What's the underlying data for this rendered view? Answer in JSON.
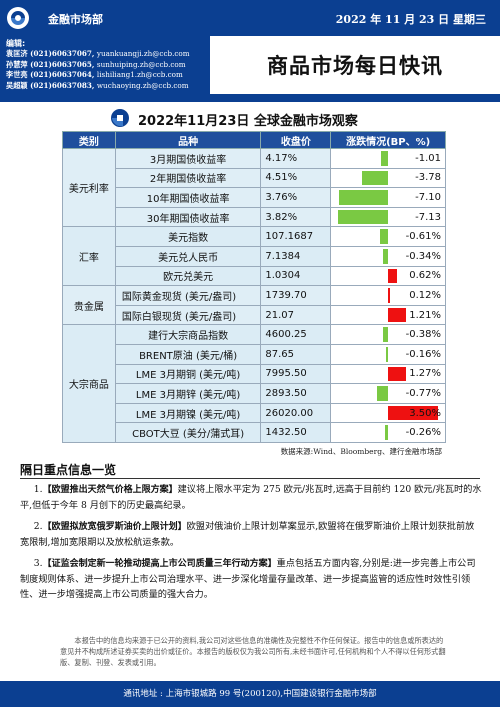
{
  "header": {
    "dept": "金融市场部",
    "date": "2022 年 11 月 23 日  星期三",
    "title": "商品市场每日快讯"
  },
  "editors": {
    "label": "编辑:",
    "people": [
      {
        "name": "袁匡济",
        "phone": "(021)60637067,",
        "email": "yuankuangji.zh@ccb.com"
      },
      {
        "name": "孙慧萍",
        "phone": "(021)60637065,",
        "email": "sunhuiping.zh@ccb.com"
      },
      {
        "name": "李世亮",
        "phone": "(021)60637064,",
        "email": "lishiliang1.zh@ccb.com"
      },
      {
        "name": "吴超颖",
        "phone": "(021)60637083,",
        "email": "wuchaoying.zh@ccb.com"
      }
    ]
  },
  "subtitle": "2022年11月23日 全球金融市场观察",
  "table": {
    "headers": [
      "类别",
      "品种",
      "收盘价",
      "涨跌情况(BP、%)"
    ],
    "groups": [
      {
        "category": "美元利率",
        "shade": "a",
        "rows": [
          {
            "name": "3月期国债收益率",
            "price": "4.17%",
            "change": "-1.01",
            "pct": -1.01
          },
          {
            "name": "2年期国债收益率",
            "price": "4.51%",
            "change": "-3.78",
            "pct": -3.78
          },
          {
            "name": "10年期国债收益率",
            "price": "3.76%",
            "change": "-7.10",
            "pct": -7.1
          },
          {
            "name": "30年期国债收益率",
            "price": "3.82%",
            "change": "-7.13",
            "pct": -7.13
          }
        ]
      },
      {
        "category": "汇率",
        "shade": "b",
        "rows": [
          {
            "name": "美元指数",
            "price": "107.1687",
            "change": "-0.61%",
            "pct": -0.61
          },
          {
            "name": "美元兑人民币",
            "price": "7.1384",
            "change": "-0.34%",
            "pct": -0.34
          },
          {
            "name": "欧元兑美元",
            "price": "1.0304",
            "change": "0.62%",
            "pct": 0.62
          }
        ]
      },
      {
        "category": "贵金属",
        "shade": "a",
        "rows": [
          {
            "name": "国际黄金现货 (美元/盎司)",
            "price": "1739.70",
            "change": "0.12%",
            "pct": 0.12,
            "left": true
          },
          {
            "name": "国际白银现货 (美元/盎司)",
            "price": "21.07",
            "change": "1.21%",
            "pct": 1.21,
            "left": true
          }
        ]
      },
      {
        "category": "大宗商品",
        "shade": "b",
        "rows": [
          {
            "name": "建行大宗商品指数",
            "price": "4600.25",
            "change": "-0.38%",
            "pct": -0.38
          },
          {
            "name": "BRENT原油 (美元/桶)",
            "price": "87.65",
            "change": "-0.16%",
            "pct": -0.16
          },
          {
            "name": "LME 3月期铜 (美元/吨)",
            "price": "7995.50",
            "change": "1.27%",
            "pct": 1.27
          },
          {
            "name": "LME 3月期锌 (美元/吨)",
            "price": "2893.50",
            "change": "-0.77%",
            "pct": -0.77
          },
          {
            "name": "LME 3月期镍 (美元/吨)",
            "price": "26020.00",
            "change": "3.50%",
            "pct": 3.5
          },
          {
            "name": "CBOT大豆 (美分/蒲式耳)",
            "price": "1432.50",
            "change": "-0.26%",
            "pct": -0.26
          }
        ]
      }
    ]
  },
  "source": "数据来源:Wind、Bloomberg、建行金融市场部",
  "news": {
    "heading": "隔日重点信息一览",
    "items": [
      {
        "num": "1.",
        "title": "【欧盟推出天然气价格上限方案】",
        "body": "建议将上限水平定为 275 欧元/兆瓦时,远高于目前约 120 欧元/兆瓦时的水平,但低于今年 8 月创下的历史最高纪录。"
      },
      {
        "num": "2.",
        "title": "【欧盟拟放宽俄罗斯油价上限计划】",
        "body": "欧盟对俄油价上限计划草案显示,欧盟将在俄罗斯油价上限计划获批前放宽限制,增加宽限期以及放松航运条款。"
      },
      {
        "num": "3.",
        "title": "【证监会制定新一轮推动提高上市公司质量三年行动方案】",
        "body": "重点包括五方面内容,分别是:进一步完善上市公司制度规则体系、进一步提升上市公司治理水平、进一步深化增量存量改革、进一步提高监管的适应性时效性引领性、进一步增强提高上市公司质量的强大合力。"
      }
    ]
  },
  "disclaimer": "本报告中的信息均来源于已公开的资料,我公司对这些信息的准确性及完整性不作任何保证。报告中的信息或所表达的意见并不构成所述证券买卖的出价或征价。本报告的版权仅为我公司所有,未经书面许可,任何机构和个人不得以任何形式翻版、复制、刊登、发表或引用。",
  "footer": "通讯地址 : 上海市银城路 99 号(200120),中国建设银行金融市场部",
  "colors": {
    "brand": "#0b3f91",
    "up": "#ee1111",
    "down": "#7ac943"
  }
}
